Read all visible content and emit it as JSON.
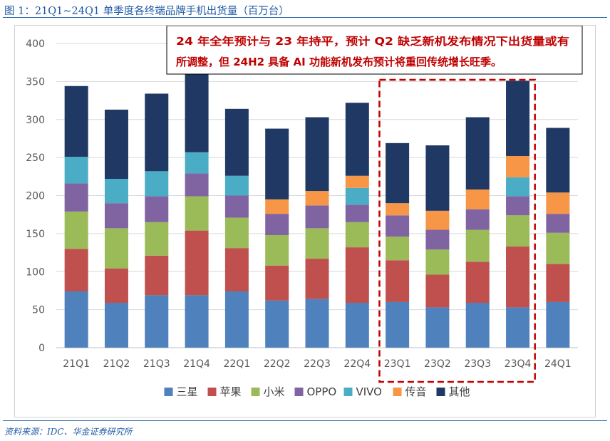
{
  "figure_title": "图 1：21Q1~24Q1 单季度各终端品牌手机出货量（百万台）",
  "source": "资料来源：IDC、华金证券研究所",
  "colors": {
    "header_blue": "#1f5aa6",
    "callout_text": "#c00000",
    "highlight_box": "#c00000"
  },
  "chart_data": {
    "type": "bar",
    "stacked": true,
    "categories": [
      "21Q1",
      "21Q2",
      "21Q3",
      "21Q4",
      "22Q1",
      "22Q2",
      "22Q3",
      "22Q4",
      "23Q1",
      "23Q2",
      "23Q3",
      "23Q4",
      "24Q1"
    ],
    "series": [
      {
        "name": "三星",
        "color": "#4f81bd",
        "values": [
          74,
          59,
          69,
          69,
          74,
          62,
          64,
          59,
          60,
          53,
          59,
          53,
          60
        ]
      },
      {
        "name": "苹果",
        "color": "#c0504d",
        "values": [
          56,
          45,
          52,
          85,
          57,
          46,
          53,
          73,
          55,
          43,
          54,
          80,
          50
        ]
      },
      {
        "name": "小米",
        "color": "#9bbb59",
        "values": [
          49,
          53,
          44,
          45,
          40,
          40,
          40,
          33,
          31,
          33,
          42,
          41,
          41
        ]
      },
      {
        "name": "OPPO",
        "color": "#8064a2",
        "values": [
          37,
          33,
          34,
          30,
          29,
          28,
          30,
          23,
          28,
          26,
          27,
          25,
          25
        ]
      },
      {
        "name": "VIVO",
        "color": "#4bacc6",
        "values": [
          35,
          32,
          33,
          28,
          26,
          0,
          0,
          22,
          0,
          0,
          0,
          25,
          0
        ]
      },
      {
        "name": "传音",
        "color": "#f79646",
        "values": [
          0,
          0,
          0,
          0,
          0,
          19,
          19,
          16,
          16,
          25,
          26,
          28,
          28
        ]
      },
      {
        "name": "其他",
        "color": "#1f3864",
        "values": [
          93,
          91,
          102,
          109,
          88,
          93,
          97,
          96,
          79,
          86,
          95,
          99,
          85
        ]
      }
    ],
    "yticks": [
      "0",
      "50",
      "100",
      "150",
      "200",
      "250",
      "300",
      "350",
      "400"
    ],
    "ylim": [
      0,
      400
    ],
    "grid": true,
    "legend_position": "bottom",
    "annotation": "24 年全年预计与 23 年持平，预计 Q2 缺乏新机发布情况下出货量或有所调整，但 24H2 具备 AI 功能新机发布预计将重回传统增长旺季。",
    "annotation_lines": [
      "24 年全年预计与 23 年持平，预计 Q2 缺乏新机发布情况下出货量或有",
      "所调整，但 24H2 具备 AI 功能新机发布预计将重回传统增长旺季。"
    ],
    "highlighted_range": [
      "23Q1",
      "23Q4"
    ]
  }
}
